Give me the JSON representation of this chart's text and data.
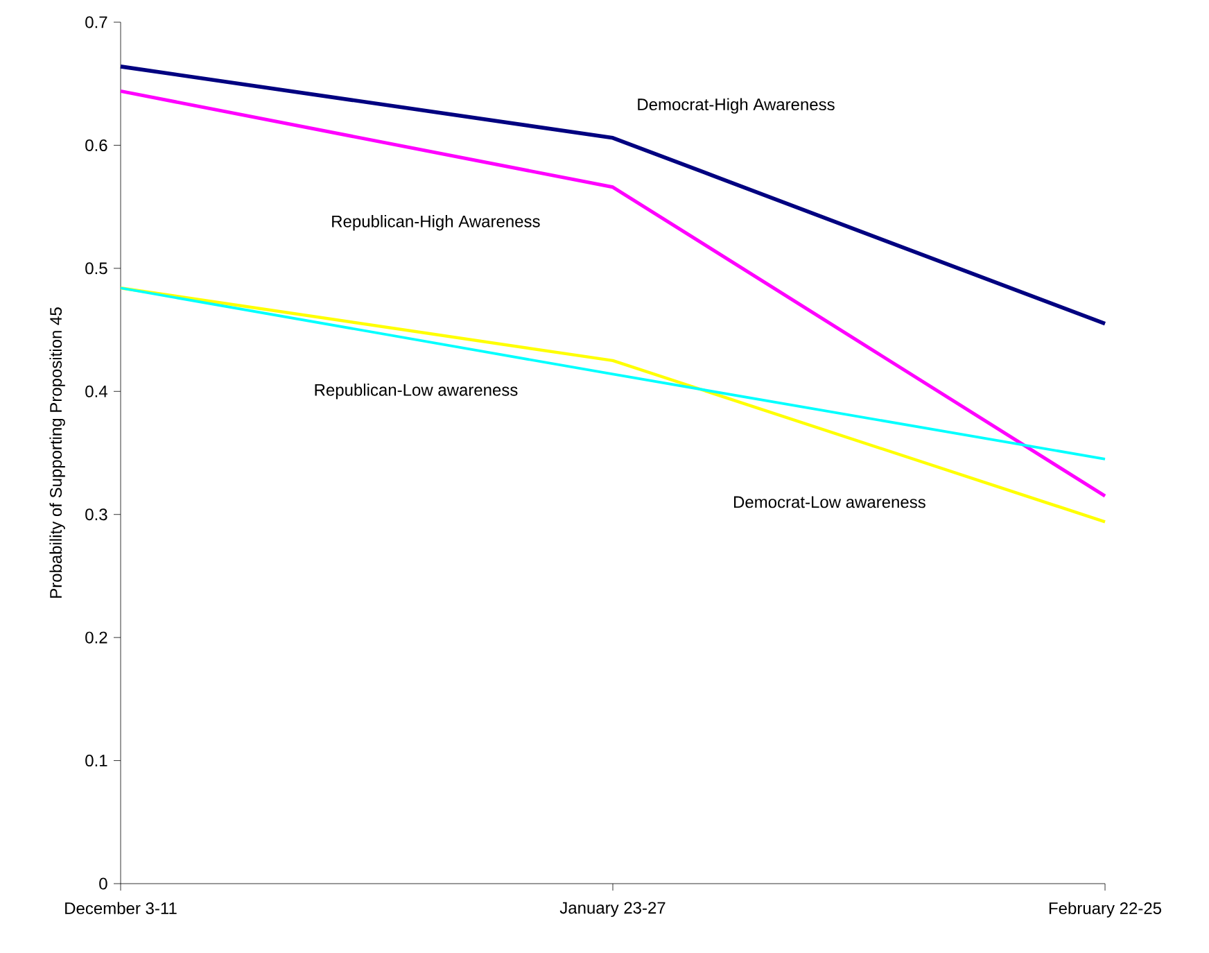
{
  "chart_data": {
    "type": "line",
    "ylabel": "Probability of Supporting Proposition 45",
    "categories": [
      "December 3-11",
      "January 23-27",
      "February 22-25"
    ],
    "series": [
      {
        "name": "Democrat-High Awareness",
        "color": "#000080",
        "values": [
          0.664,
          0.606,
          0.455
        ]
      },
      {
        "name": "Republican-High Awareness",
        "color": "#ff00ff",
        "values": [
          0.644,
          0.566,
          0.315
        ]
      },
      {
        "name": "Democrat-Low awareness",
        "color": "#ffff00",
        "values": [
          0.484,
          0.425,
          0.294
        ]
      },
      {
        "name": "Republican-Low awareness",
        "color": "#00ffff",
        "values": [
          0.484,
          0.414,
          0.345
        ]
      }
    ],
    "ylim": [
      0,
      0.7
    ],
    "yticks": [
      0,
      0.1,
      0.2,
      0.3,
      0.4,
      0.5,
      0.6,
      0.7
    ],
    "grid": false,
    "legend": false,
    "marker": "none",
    "line_style": "solid"
  }
}
